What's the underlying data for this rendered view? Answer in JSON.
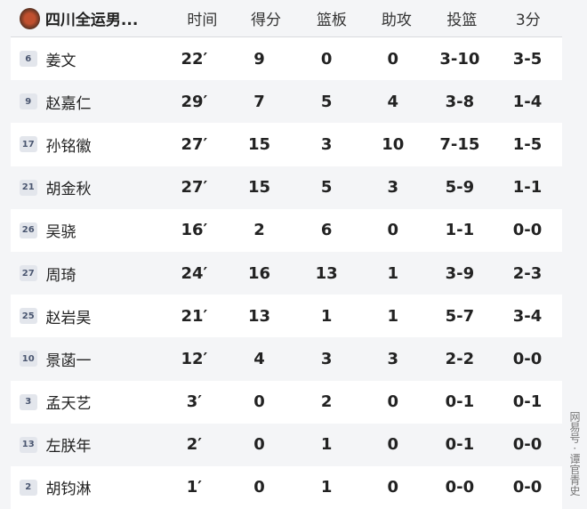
{
  "header": {
    "team": "四川全运男...",
    "columns": [
      "时间",
      "得分",
      "篮板",
      "助攻",
      "投篮",
      "3分"
    ]
  },
  "players": [
    {
      "num": "6",
      "name": "姜文",
      "stats": [
        "22′",
        "9",
        "0",
        "0",
        "3-10",
        "3-5"
      ]
    },
    {
      "num": "9",
      "name": "赵嘉仁",
      "stats": [
        "29′",
        "7",
        "5",
        "4",
        "3-8",
        "1-4"
      ]
    },
    {
      "num": "17",
      "name": "孙铭徽",
      "stats": [
        "27′",
        "15",
        "3",
        "10",
        "7-15",
        "1-5"
      ]
    },
    {
      "num": "21",
      "name": "胡金秋",
      "stats": [
        "27′",
        "15",
        "5",
        "3",
        "5-9",
        "1-1"
      ]
    },
    {
      "num": "26",
      "name": "吴骁",
      "stats": [
        "16′",
        "2",
        "6",
        "0",
        "1-1",
        "0-0"
      ]
    },
    {
      "num": "27",
      "name": "周琦",
      "stats": [
        "24′",
        "16",
        "13",
        "1",
        "3-9",
        "2-3"
      ]
    },
    {
      "num": "25",
      "name": "赵岩昊",
      "stats": [
        "21′",
        "13",
        "1",
        "1",
        "5-7",
        "3-4"
      ]
    },
    {
      "num": "10",
      "name": "景菡一",
      "stats": [
        "12′",
        "4",
        "3",
        "3",
        "2-2",
        "0-0"
      ]
    },
    {
      "num": "3",
      "name": "孟天艺",
      "stats": [
        "3′",
        "0",
        "2",
        "0",
        "0-1",
        "0-1"
      ]
    },
    {
      "num": "13",
      "name": "左朕年",
      "stats": [
        "2′",
        "0",
        "1",
        "0",
        "0-1",
        "0-0"
      ]
    },
    {
      "num": "2",
      "name": "胡钧淋",
      "stats": [
        "1′",
        "0",
        "1",
        "0",
        "0-0",
        "0-0"
      ]
    }
  ],
  "watermark": "网易号 · 谭官青史"
}
